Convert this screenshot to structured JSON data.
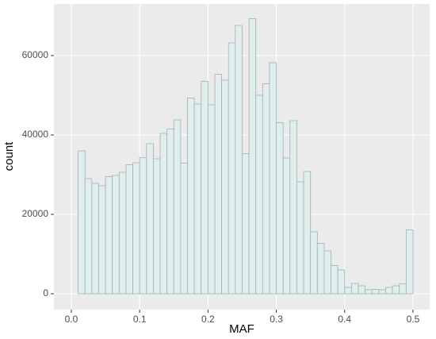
{
  "chart_data": {
    "type": "histogram",
    "x_label": "MAF",
    "y_label": "count",
    "bins": [
      0,
      0.01,
      0.02,
      0.03,
      0.04,
      0.05,
      0.06,
      0.07,
      0.08,
      0.09,
      0.1,
      0.11,
      0.12,
      0.13,
      0.14,
      0.15,
      0.16,
      0.17,
      0.18,
      0.19,
      0.2,
      0.21,
      0.22,
      0.23,
      0.24,
      0.25,
      0.26,
      0.27,
      0.28,
      0.29,
      0.3,
      0.31,
      0.32,
      0.33,
      0.34,
      0.35,
      0.36,
      0.37,
      0.38,
      0.39,
      0.4,
      0.41,
      0.42,
      0.43,
      0.44,
      0.45,
      0.46,
      0.47,
      0.48,
      0.49,
      0.5
    ],
    "counts": [
      0,
      36000,
      29000,
      27800,
      27200,
      29500,
      29800,
      30600,
      32500,
      33000,
      34300,
      37800,
      34000,
      40400,
      41500,
      43800,
      32900,
      49300,
      47800,
      53500,
      47600,
      55300,
      53800,
      63200,
      67600,
      35300,
      69300,
      50000,
      52900,
      58200,
      43100,
      34200,
      43600,
      28200,
      30800,
      15600,
      12700,
      10800,
      7100,
      6000,
      1600,
      2600,
      2000,
      1000,
      1100,
      1000,
      1600,
      2000,
      2500,
      16100
    ],
    "color": "#e0eeee",
    "edge_color": "#9fb1b1",
    "xlim": [
      -0.0255,
      0.5244
    ],
    "ylim": [
      -4000,
      73000
    ],
    "xticks": [
      {
        "value": 0,
        "label": "0.0"
      },
      0.1,
      0.2,
      0.3,
      0.4,
      0.5
    ],
    "yticks": [
      0,
      20000,
      40000,
      60000
    ],
    "grid": true
  }
}
